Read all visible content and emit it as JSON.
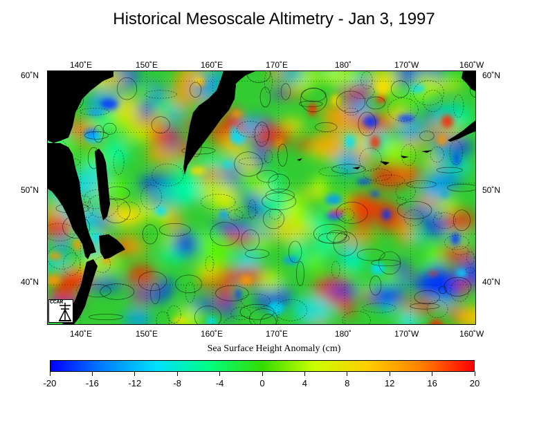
{
  "title": "Historical Mesoscale Altimetry - Jan 3, 1997",
  "map": {
    "lon_range": [
      135,
      200
    ],
    "lat_range": [
      36,
      61
    ],
    "top_lon_labels": [
      "140˚E",
      "150˚E",
      "160˚E",
      "170˚E",
      "180˚",
      "170˚W",
      "160˚W"
    ],
    "bottom_lon_labels": [
      "140˚E",
      "150˚E",
      "160˚E",
      "170˚E",
      "180˚",
      "170˚W",
      "160˚W"
    ],
    "left_lat_labels": [
      "60˚N",
      "50˚N",
      "40˚N"
    ],
    "right_lat_labels": [
      "60˚N",
      "50˚N",
      "40˚N"
    ],
    "land_color": "#000000",
    "ocean_base_color": "#33cc33"
  },
  "colorbar": {
    "title": "Sea Surface Height Anomaly (cm)",
    "ticks": [
      "-20",
      "-16",
      "-12",
      "-8",
      "-4",
      "0",
      "4",
      "8",
      "12",
      "16",
      "20"
    ],
    "min": -20,
    "max": 20,
    "colors": [
      "#0000ff",
      "#0080ff",
      "#00e0ff",
      "#00ff80",
      "#33dd00",
      "#ccff00",
      "#ffcc00",
      "#ff8000",
      "#ff0000"
    ]
  },
  "logo": {
    "text": "CCAR"
  }
}
